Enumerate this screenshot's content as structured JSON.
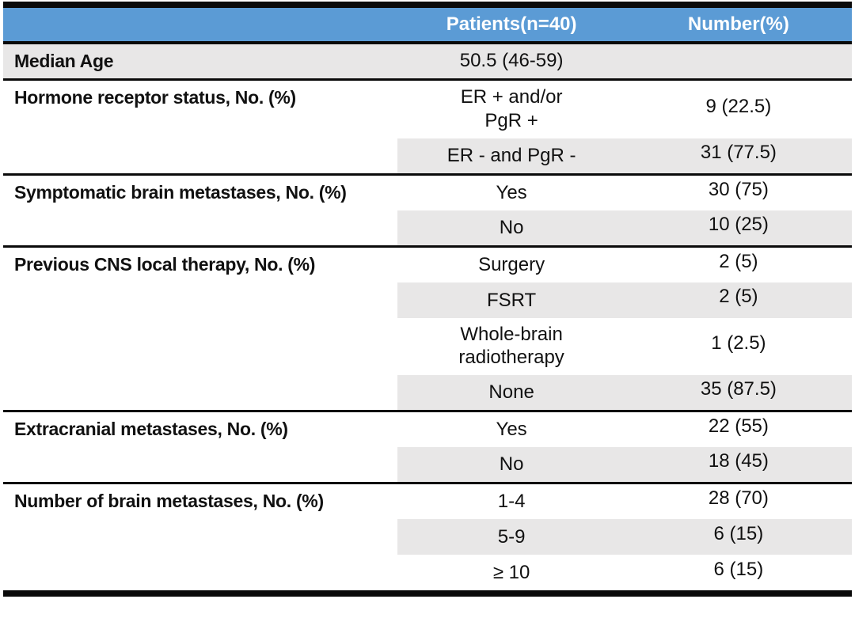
{
  "colors": {
    "header_bg": "#5B9BD5",
    "shade": "#E8E7E7",
    "border": "#0A0A0A",
    "header_text": "#FFFFFF"
  },
  "table": {
    "header": {
      "col1": "",
      "col2": "Patients(n=40)",
      "col3": "Number(%)"
    },
    "sections": [
      {
        "label": "Median Age",
        "full_shade": true,
        "rows": [
          {
            "patients": "50.5 (46-59)",
            "number": "",
            "shaded": false
          }
        ]
      },
      {
        "label": "Hormone receptor status, No. (%)",
        "full_shade": false,
        "rows": [
          {
            "patients": [
              "ER + and/or",
              "PgR +"
            ],
            "number": "9 (22.5)",
            "shaded": false
          },
          {
            "patients": "ER - and PgR -",
            "number": "31 (77.5)",
            "shaded": true
          }
        ]
      },
      {
        "label": "Symptomatic brain metastases, No. (%)",
        "full_shade": false,
        "rows": [
          {
            "patients": "Yes",
            "number": "30 (75)",
            "shaded": false
          },
          {
            "patients": "No",
            "number": "10 (25)",
            "shaded": true
          }
        ]
      },
      {
        "label": "Previous CNS local therapy, No. (%)",
        "full_shade": false,
        "rows": [
          {
            "patients": "Surgery",
            "number": "2 (5)",
            "shaded": false
          },
          {
            "patients": "FSRT",
            "number": "2 (5)",
            "shaded": true
          },
          {
            "patients": [
              "Whole-brain",
              "radiotherapy"
            ],
            "number": "1 (2.5)",
            "shaded": false
          },
          {
            "patients": "None",
            "number": "35 (87.5)",
            "shaded": true
          }
        ]
      },
      {
        "label": "Extracranial metastases, No. (%)",
        "full_shade": false,
        "rows": [
          {
            "patients": "Yes",
            "number": "22 (55)",
            "shaded": false
          },
          {
            "patients": "No",
            "number": "18 (45)",
            "shaded": true
          }
        ]
      },
      {
        "label": "Number of brain metastases, No. (%)",
        "full_shade": false,
        "rows": [
          {
            "patients": "1-4",
            "number": "28 (70)",
            "shaded": false
          },
          {
            "patients": "5-9",
            "number": "6 (15)",
            "shaded": true
          },
          {
            "patients": "≥ 10",
            "number": "6 (15)",
            "shaded": false
          }
        ]
      }
    ]
  }
}
